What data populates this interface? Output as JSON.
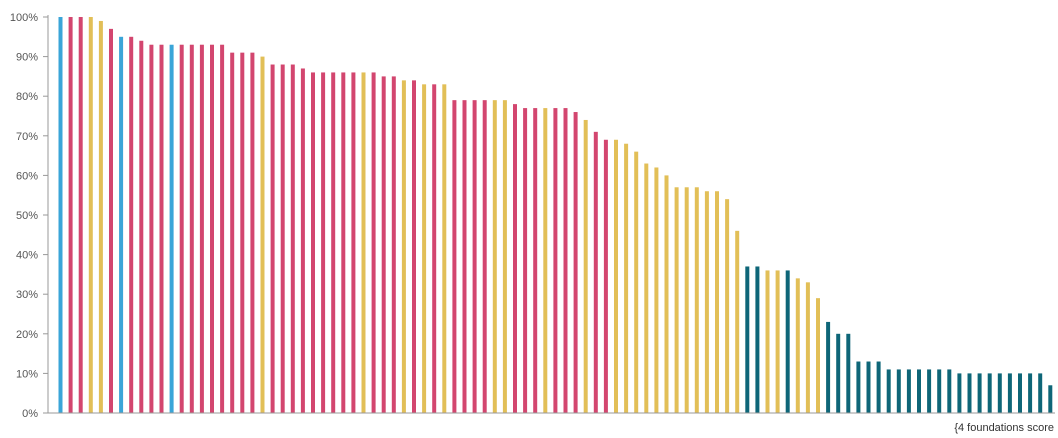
{
  "chart_data": {
    "type": "bar",
    "title": "",
    "xlabel": "{4 foundations score",
    "ylabel": "",
    "ylim": [
      0,
      100
    ],
    "y_ticks": [
      "0%",
      "10%",
      "20%",
      "30%",
      "40%",
      "50%",
      "60%",
      "70%",
      "80%",
      "90%",
      "100%"
    ],
    "grid": false,
    "colors": {
      "blue": "#3aa5d8",
      "pink": "#d3466f",
      "gold": "#e2bf57",
      "teal": "#0e6678"
    },
    "values": [
      100,
      100,
      100,
      100,
      99,
      97,
      95,
      95,
      94,
      93,
      93,
      93,
      93,
      93,
      93,
      93,
      93,
      91,
      91,
      91,
      90,
      88,
      88,
      88,
      87,
      86,
      86,
      86,
      86,
      86,
      86,
      86,
      85,
      85,
      84,
      84,
      83,
      83,
      83,
      79,
      79,
      79,
      79,
      79,
      79,
      78,
      77,
      77,
      77,
      77,
      77,
      76,
      74,
      71,
      69,
      69,
      68,
      66,
      63,
      62,
      60,
      57,
      57,
      57,
      56,
      56,
      54,
      46,
      37,
      37,
      36,
      36,
      36,
      34,
      33,
      29,
      23,
      20,
      20,
      13,
      13,
      13,
      11,
      11,
      11,
      11,
      11,
      11,
      11,
      10,
      10,
      10,
      10,
      10,
      10,
      10,
      10,
      10,
      7
    ],
    "bar_colors": [
      "blue",
      "pink",
      "pink",
      "gold",
      "gold",
      "pink",
      "blue",
      "pink",
      "pink",
      "pink",
      "pink",
      "blue",
      "pink",
      "pink",
      "pink",
      "pink",
      "pink",
      "pink",
      "pink",
      "pink",
      "gold",
      "pink",
      "pink",
      "pink",
      "pink",
      "pink",
      "pink",
      "pink",
      "pink",
      "pink",
      "gold",
      "pink",
      "pink",
      "pink",
      "gold",
      "pink",
      "gold",
      "pink",
      "gold",
      "pink",
      "pink",
      "pink",
      "pink",
      "gold",
      "gold",
      "pink",
      "pink",
      "pink",
      "gold",
      "pink",
      "pink",
      "pink",
      "gold",
      "pink",
      "pink",
      "gold",
      "gold",
      "gold",
      "gold",
      "gold",
      "gold",
      "gold",
      "gold",
      "gold",
      "gold",
      "gold",
      "gold",
      "gold",
      "teal",
      "teal",
      "gold",
      "gold",
      "teal",
      "gold",
      "gold",
      "gold",
      "teal",
      "teal",
      "teal",
      "teal",
      "teal",
      "teal",
      "teal",
      "teal",
      "teal",
      "teal",
      "teal",
      "teal",
      "teal",
      "teal",
      "teal",
      "teal",
      "teal",
      "teal",
      "teal",
      "teal",
      "teal",
      "teal",
      "teal"
    ]
  }
}
